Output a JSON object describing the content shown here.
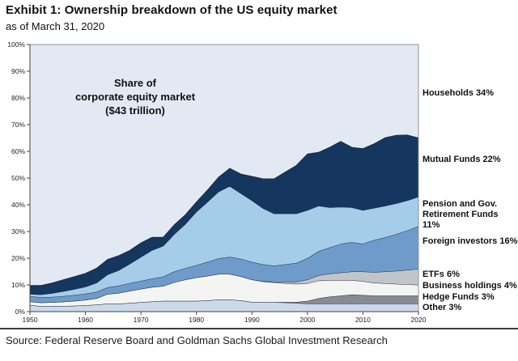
{
  "header": {
    "title": "Exhibit 1: Ownership breakdown of the US equity market",
    "subtitle": "as of March 31, 2020"
  },
  "annotation": "Share of\ncorporate equity market\n($43 trillion)",
  "source": "Source: Federal Reserve Board and Goldman Sachs Global Investment Research",
  "right_labels": {
    "households": "Households 34%",
    "mutual": "Mutual Funds 22%",
    "pension": "Pension and Gov. Retirement Funds 11%",
    "foreign": "Foreign investors 16%",
    "etfs": "ETFs 6%",
    "business": "Business holdings 4%",
    "hedge": "Hedge Funds 3%",
    "other": "Other 3%"
  },
  "chart_data": {
    "type": "area",
    "stacked": true,
    "title": "Share of corporate equity market ($43 trillion)",
    "xlabel": "",
    "ylabel": "",
    "x_range": [
      1950,
      2020
    ],
    "ylim": [
      0,
      100
    ],
    "x_ticks": [
      "1950",
      "1960",
      "1970",
      "1980",
      "1990",
      "2000",
      "2010",
      "2020"
    ],
    "y_ticks": [
      "0%",
      "10%",
      "20%",
      "30%",
      "40%",
      "50%",
      "60%",
      "70%",
      "80%",
      "90%",
      "100%"
    ],
    "grid": false,
    "legend_position": "right-outside",
    "edge_color": "#1c2b45",
    "frame_color": "#8f9399",
    "axis_color": "#444444",
    "x": [
      1950,
      1952,
      1954,
      1956,
      1958,
      1960,
      1962,
      1964,
      1966,
      1968,
      1970,
      1972,
      1974,
      1976,
      1978,
      1980,
      1982,
      1984,
      1986,
      1988,
      1990,
      1992,
      1994,
      1996,
      1998,
      2000,
      2002,
      2004,
      2006,
      2008,
      2010,
      2012,
      2014,
      2016,
      2018,
      2020
    ],
    "series": [
      {
        "name": "Other",
        "pct": "3%",
        "color": "#ccd9ea",
        "values": [
          2.5,
          2.0,
          2.0,
          2.1,
          2.2,
          2.4,
          2.6,
          3.0,
          3.0,
          3.2,
          3.5,
          3.8,
          4.0,
          4.0,
          4.0,
          4.0,
          4.2,
          4.5,
          4.5,
          4.2,
          3.6,
          3.5,
          3.5,
          3.4,
          3.2,
          3.0,
          3.0,
          3.0,
          3.0,
          3.0,
          3.0,
          3.0,
          3.0,
          3.0,
          3.0,
          3.0
        ]
      },
      {
        "name": "Hedge Funds",
        "pct": "3%",
        "color": "#888c91",
        "values": [
          0,
          0,
          0,
          0,
          0,
          0,
          0,
          0,
          0,
          0,
          0,
          0,
          0,
          0,
          0,
          0,
          0,
          0,
          0,
          0,
          0,
          0,
          0,
          0.2,
          0.4,
          1.0,
          2.0,
          2.6,
          3.0,
          3.4,
          3.2,
          3.0,
          3.0,
          3.0,
          3.0,
          3.0
        ]
      },
      {
        "name": "Business holdings",
        "pct": "4%",
        "color": "#f4f5f2",
        "values": [
          1.3,
          1.4,
          1.5,
          1.6,
          1.8,
          2.0,
          2.4,
          3.6,
          4.0,
          4.6,
          5.0,
          5.4,
          5.6,
          7.0,
          8.0,
          8.8,
          9.2,
          9.6,
          9.6,
          9.0,
          8.4,
          7.8,
          7.4,
          7.0,
          6.8,
          6.6,
          6.6,
          6.2,
          5.8,
          5.4,
          5.2,
          4.8,
          4.6,
          4.4,
          4.2,
          4.0
        ]
      },
      {
        "name": "ETFs",
        "pct": "6%",
        "color": "#c0c5c9",
        "values": [
          0,
          0,
          0,
          0,
          0,
          0,
          0,
          0,
          0,
          0,
          0,
          0,
          0,
          0,
          0,
          0,
          0,
          0,
          0,
          0,
          0,
          0.1,
          0.3,
          0.5,
          0.8,
          1.4,
          2.0,
          2.4,
          2.8,
          3.2,
          3.6,
          4.0,
          4.4,
          4.8,
          5.4,
          6.0
        ]
      },
      {
        "name": "Foreign investors",
        "pct": "16%",
        "color": "#6f9bcb",
        "values": [
          2.0,
          2.0,
          2.0,
          2.1,
          2.2,
          2.3,
          2.4,
          2.5,
          2.7,
          2.9,
          3.0,
          3.2,
          3.5,
          4.0,
          4.3,
          4.6,
          5.2,
          5.8,
          6.4,
          6.6,
          6.6,
          6.3,
          6.0,
          6.6,
          7.0,
          8.0,
          9.0,
          9.8,
          10.8,
          11.0,
          10.4,
          12.0,
          12.8,
          13.8,
          14.8,
          16.0
        ]
      },
      {
        "name": "Pension and Gov. Retirement Funds",
        "pct": "11%",
        "color": "#a5cdea",
        "values": [
          0.8,
          1.0,
          1.4,
          1.8,
          2.2,
          2.6,
          3.4,
          4.8,
          5.8,
          7.2,
          9.0,
          10.6,
          11.5,
          14.0,
          16.5,
          20.0,
          22.5,
          25.0,
          26.5,
          24.5,
          23.0,
          21.0,
          19.5,
          19.0,
          18.5,
          18.0,
          17.0,
          15.0,
          13.8,
          13.0,
          12.6,
          12.0,
          11.8,
          11.5,
          11.2,
          11.0
        ]
      },
      {
        "name": "Mutual Funds",
        "pct": "22%",
        "color": "#14365f",
        "values": [
          3.2,
          3.4,
          3.8,
          4.3,
          4.7,
          5.0,
          5.4,
          5.6,
          5.4,
          5.0,
          5.2,
          4.8,
          3.2,
          3.5,
          3.4,
          3.6,
          4.4,
          5.4,
          6.6,
          7.2,
          9.0,
          11.0,
          13.0,
          15.5,
          18.0,
          21.0,
          20.0,
          22.5,
          24.5,
          22.5,
          23.0,
          24.0,
          25.5,
          25.5,
          24.5,
          22.0
        ]
      }
    ],
    "top_fill": {
      "name": "Households",
      "pct": "34%",
      "color": "#e3e9f3"
    }
  }
}
